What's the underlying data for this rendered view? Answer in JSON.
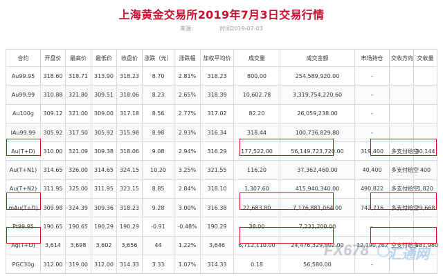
{
  "page": {
    "title": "上海黄金交易所2019年7月3日交易行情",
    "source_label": "来源:",
    "time_label": "时间",
    "time_value": "2019-07-03"
  },
  "table": {
    "columns": [
      "合约",
      "开盘价",
      "最高价",
      "最低价",
      "收盘价",
      "涨跌（元）",
      "涨跌幅",
      "加权平均价",
      "成交量",
      "成交金额",
      "市场持仓",
      "交收方向",
      "交收量"
    ],
    "rows": [
      [
        "Au99.95",
        "318.60",
        "318.71",
        "313.90",
        "318.23",
        "8.70",
        "2.81%",
        "318.23",
        "800.00",
        "254,589,920.00",
        "-",
        "",
        ""
      ],
      [
        "Au99.99",
        "310.88",
        "321.80",
        "309.51",
        "318.06",
        "8.23",
        "2.65%",
        "318.39",
        "10,602.78",
        "3,319,754,220.60",
        "-",
        "",
        ""
      ],
      [
        "Au100g",
        "309.12",
        "321.00",
        "309.00",
        "317.18",
        "8.56",
        "2.77%",
        "317.02",
        "82.20",
        "26,059,238.00",
        "-",
        "",
        ""
      ],
      [
        "IAu99.99",
        "305.92",
        "317.50",
        "305.92",
        "315.98",
        "8.98",
        "2.93%",
        "316.34",
        "318.44",
        "100,736,829.80",
        "-",
        "",
        ""
      ],
      [
        "Au(T+D)",
        "310.00",
        "321.09",
        "309.38",
        "318.06",
        "9.08",
        "2.94%",
        "316.29",
        "177,522.00",
        "56,149,723,720.00",
        "319,400",
        "多支付给空",
        "30,144"
      ],
      [
        "Au(T+N1)",
        "314.65",
        "326.00",
        "314.65",
        "324.15",
        "10.20",
        "3.25%",
        "321.55",
        "116.20",
        "37,362,460.00",
        "40,400",
        "多支付给空",
        "400"
      ],
      [
        "Au(T+N2)",
        "311.95",
        "325.00",
        "311.95",
        "323.15",
        "8.85",
        "2.84%",
        "318.10",
        "1,307.60",
        "415,940,340.00",
        "490,822",
        "多支付给空",
        "1,820"
      ],
      [
        "mAu(T+D)",
        "309.98",
        "324.39",
        "309.36",
        "318.23",
        "9.28",
        "3.00%",
        "316.38",
        "22,683.80",
        "7,176,881,064.00",
        "742,716",
        "多支付给空",
        "29,668"
      ],
      [
        "Pt99.95",
        "190.65",
        "190.65",
        "190.29",
        "190.29",
        "-0.91",
        "-0.48%",
        "190.29",
        "38.00",
        "7,231,200.00",
        "-",
        "",
        ""
      ],
      [
        "Ag(T+D)",
        "3,614",
        "3,698",
        "3,602",
        "3,656",
        "44",
        "1.22%",
        "3,646",
        "6,712,110.00",
        "24,476,329,802.00",
        "12,190,262",
        "空支付给多",
        "181,980"
      ],
      [
        "PGC30g",
        "312.00",
        "319.00",
        "312.00",
        "314.33",
        "3.33",
        "1.07%",
        "314.33",
        "0.18",
        "56,580.00",
        "-",
        "",
        ""
      ]
    ]
  },
  "watermark": {
    "text1": "FX678",
    "text2": "汇通网"
  },
  "colors": {
    "title": "#c8102e",
    "highlight_border": "#e60012",
    "grid": "#d9d9d9"
  }
}
